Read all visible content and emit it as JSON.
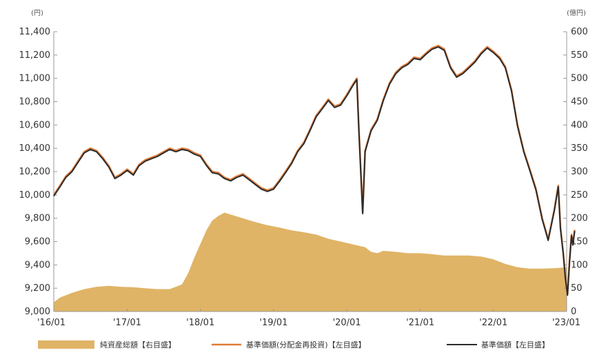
{
  "chart_data": {
    "type": "line",
    "left_unit": "(円)",
    "right_unit": "(億円)",
    "x_ticks": [
      "'16/01",
      "'17/01",
      "'18/01",
      "'19/01",
      "'20/01",
      "'21/01",
      "'22/01",
      "'23/01"
    ],
    "y_left_ticks": [
      "11,400",
      "11,200",
      "11,000",
      "10,800",
      "10,600",
      "10,400",
      "10,200",
      "10,000",
      "9,800",
      "9,600",
      "9,400",
      "9,200",
      "9,000"
    ],
    "y_right_ticks": [
      "600",
      "550",
      "500",
      "450",
      "400",
      "350",
      "300",
      "250",
      "200",
      "150",
      "100",
      "50",
      "0"
    ],
    "ylim_left": [
      9000,
      11400
    ],
    "ylim_right": [
      0,
      600
    ],
    "x_range": [
      "2016-01",
      "2023-01"
    ],
    "grid": false,
    "legend": [
      "純資産総額【右目盛】",
      "基準価額(分配金再投資)【左目盛】",
      "基準価額【左目盛】"
    ],
    "colors": {
      "area": "#e0b466",
      "reinvested_line": "#e07b39",
      "nav_line": "#2b2b2b",
      "axis": "#999999"
    },
    "series": [
      {
        "name": "純資産総額【右目盛】",
        "axis": "right",
        "kind": "area",
        "points": [
          [
            "2016-01",
            20
          ],
          [
            "2016-02",
            30
          ],
          [
            "2016-04",
            40
          ],
          [
            "2016-06",
            48
          ],
          [
            "2016-08",
            53
          ],
          [
            "2016-10",
            55
          ],
          [
            "2016-12",
            53
          ],
          [
            "2017-02",
            52
          ],
          [
            "2017-04",
            50
          ],
          [
            "2017-06",
            48
          ],
          [
            "2017-08",
            48
          ],
          [
            "2017-10",
            58
          ],
          [
            "2017-11",
            82
          ],
          [
            "2017-12",
            115
          ],
          [
            "2018-01",
            145
          ],
          [
            "2018-02",
            175
          ],
          [
            "2018-03",
            195
          ],
          [
            "2018-04",
            205
          ],
          [
            "2018-05",
            212
          ],
          [
            "2018-06",
            208
          ],
          [
            "2018-08",
            200
          ],
          [
            "2018-10",
            192
          ],
          [
            "2018-12",
            185
          ],
          [
            "2019-02",
            180
          ],
          [
            "2019-04",
            174
          ],
          [
            "2019-06",
            170
          ],
          [
            "2019-08",
            165
          ],
          [
            "2019-10",
            156
          ],
          [
            "2019-12",
            150
          ],
          [
            "2020-02",
            144
          ],
          [
            "2020-04",
            138
          ],
          [
            "2020-05",
            128
          ],
          [
            "2020-06",
            125
          ],
          [
            "2020-07",
            130
          ],
          [
            "2020-09",
            128
          ],
          [
            "2020-11",
            125
          ],
          [
            "2021-01",
            125
          ],
          [
            "2021-03",
            123
          ],
          [
            "2021-05",
            120
          ],
          [
            "2021-07",
            120
          ],
          [
            "2021-09",
            120
          ],
          [
            "2021-11",
            118
          ],
          [
            "2022-01",
            112
          ],
          [
            "2022-03",
            102
          ],
          [
            "2022-05",
            95
          ],
          [
            "2022-07",
            92
          ],
          [
            "2022-09",
            92
          ],
          [
            "2022-11",
            93
          ],
          [
            "2023-01",
            95
          ]
        ]
      },
      {
        "name": "基準価額(分配金再投資)【左目盛】",
        "axis": "left",
        "kind": "line",
        "points": [
          [
            "2016-01",
            10000
          ],
          [
            "2016-02",
            10080
          ],
          [
            "2016-03",
            10160
          ],
          [
            "2016-04",
            10210
          ],
          [
            "2016-05",
            10290
          ],
          [
            "2016-06",
            10370
          ],
          [
            "2016-07",
            10400
          ],
          [
            "2016-08",
            10380
          ],
          [
            "2016-09",
            10320
          ],
          [
            "2016-10",
            10250
          ],
          [
            "2016-11",
            10150
          ],
          [
            "2016-12",
            10180
          ],
          [
            "2017-01",
            10220
          ],
          [
            "2017-02",
            10180
          ],
          [
            "2017-03",
            10260
          ],
          [
            "2017-04",
            10300
          ],
          [
            "2017-05",
            10320
          ],
          [
            "2017-06",
            10340
          ],
          [
            "2017-07",
            10370
          ],
          [
            "2017-08",
            10400
          ],
          [
            "2017-09",
            10380
          ],
          [
            "2017-10",
            10400
          ],
          [
            "2017-11",
            10390
          ],
          [
            "2017-12",
            10360
          ],
          [
            "2018-01",
            10340
          ],
          [
            "2018-02",
            10260
          ],
          [
            "2018-03",
            10200
          ],
          [
            "2018-04",
            10190
          ],
          [
            "2018-05",
            10150
          ],
          [
            "2018-06",
            10130
          ],
          [
            "2018-07",
            10160
          ],
          [
            "2018-08",
            10180
          ],
          [
            "2018-09",
            10140
          ],
          [
            "2018-10",
            10100
          ],
          [
            "2018-11",
            10060
          ],
          [
            "2018-12",
            10040
          ],
          [
            "2019-01",
            10060
          ],
          [
            "2019-02",
            10130
          ],
          [
            "2019-03",
            10200
          ],
          [
            "2019-04",
            10280
          ],
          [
            "2019-05",
            10380
          ],
          [
            "2019-06",
            10450
          ],
          [
            "2019-07",
            10560
          ],
          [
            "2019-08",
            10680
          ],
          [
            "2019-09",
            10750
          ],
          [
            "2019-10",
            10820
          ],
          [
            "2019-11",
            10760
          ],
          [
            "2019-12",
            10780
          ],
          [
            "2020-01",
            10860
          ],
          [
            "2020-02",
            10950
          ],
          [
            "2020-02-20",
            11000
          ],
          [
            "2020-03",
            10560
          ],
          [
            "2020-03-20",
            9850
          ],
          [
            "2020-04",
            10380
          ],
          [
            "2020-05",
            10560
          ],
          [
            "2020-06",
            10650
          ],
          [
            "2020-07",
            10820
          ],
          [
            "2020-08",
            10960
          ],
          [
            "2020-09",
            11050
          ],
          [
            "2020-10",
            11100
          ],
          [
            "2020-11",
            11130
          ],
          [
            "2020-12",
            11180
          ],
          [
            "2021-01",
            11170
          ],
          [
            "2021-02",
            11220
          ],
          [
            "2021-03",
            11260
          ],
          [
            "2021-04",
            11280
          ],
          [
            "2021-05",
            11250
          ],
          [
            "2021-06",
            11100
          ],
          [
            "2021-07",
            11020
          ],
          [
            "2021-08",
            11050
          ],
          [
            "2021-09",
            11100
          ],
          [
            "2021-10",
            11150
          ],
          [
            "2021-11",
            11220
          ],
          [
            "2021-12",
            11270
          ],
          [
            "2022-01",
            11230
          ],
          [
            "2022-02",
            11180
          ],
          [
            "2022-03",
            11100
          ],
          [
            "2022-04",
            10900
          ],
          [
            "2022-05",
            10600
          ],
          [
            "2022-06",
            10380
          ],
          [
            "2022-07",
            10220
          ],
          [
            "2022-08",
            10050
          ],
          [
            "2022-09",
            9800
          ],
          [
            "2022-10",
            9620
          ],
          [
            "2022-11",
            9880
          ],
          [
            "2022-11-20",
            10080
          ],
          [
            "2022-12",
            9720
          ],
          [
            "2022-12-15",
            9500
          ],
          [
            "2022-12-25",
            9300
          ],
          [
            "2023-01-05",
            9150
          ],
          [
            "2023-01-15",
            9430
          ],
          [
            "2023-01-25",
            9660
          ],
          [
            "2023-02-01",
            9580
          ],
          [
            "2023-02-10",
            9700
          ]
        ]
      },
      {
        "name": "基準価額【左目盛】",
        "axis": "left",
        "kind": "line",
        "points": [
          [
            "2016-01",
            9990
          ],
          [
            "2016-02",
            10070
          ],
          [
            "2016-03",
            10150
          ],
          [
            "2016-04",
            10200
          ],
          [
            "2016-05",
            10280
          ],
          [
            "2016-06",
            10360
          ],
          [
            "2016-07",
            10390
          ],
          [
            "2016-08",
            10370
          ],
          [
            "2016-09",
            10310
          ],
          [
            "2016-10",
            10240
          ],
          [
            "2016-11",
            10140
          ],
          [
            "2016-12",
            10170
          ],
          [
            "2017-01",
            10210
          ],
          [
            "2017-02",
            10170
          ],
          [
            "2017-03",
            10250
          ],
          [
            "2017-04",
            10290
          ],
          [
            "2017-05",
            10310
          ],
          [
            "2017-06",
            10330
          ],
          [
            "2017-07",
            10360
          ],
          [
            "2017-08",
            10390
          ],
          [
            "2017-09",
            10370
          ],
          [
            "2017-10",
            10390
          ],
          [
            "2017-11",
            10380
          ],
          [
            "2017-12",
            10350
          ],
          [
            "2018-01",
            10330
          ],
          [
            "2018-02",
            10250
          ],
          [
            "2018-03",
            10190
          ],
          [
            "2018-04",
            10180
          ],
          [
            "2018-05",
            10140
          ],
          [
            "2018-06",
            10120
          ],
          [
            "2018-07",
            10150
          ],
          [
            "2018-08",
            10170
          ],
          [
            "2018-09",
            10130
          ],
          [
            "2018-10",
            10090
          ],
          [
            "2018-11",
            10050
          ],
          [
            "2018-12",
            10030
          ],
          [
            "2019-01",
            10050
          ],
          [
            "2019-02",
            10120
          ],
          [
            "2019-03",
            10190
          ],
          [
            "2019-04",
            10270
          ],
          [
            "2019-05",
            10370
          ],
          [
            "2019-06",
            10440
          ],
          [
            "2019-07",
            10550
          ],
          [
            "2019-08",
            10670
          ],
          [
            "2019-09",
            10740
          ],
          [
            "2019-10",
            10810
          ],
          [
            "2019-11",
            10750
          ],
          [
            "2019-12",
            10770
          ],
          [
            "2020-01",
            10850
          ],
          [
            "2020-02",
            10940
          ],
          [
            "2020-02-20",
            10990
          ],
          [
            "2020-03",
            10550
          ],
          [
            "2020-03-20",
            9840
          ],
          [
            "2020-04",
            10370
          ],
          [
            "2020-05",
            10550
          ],
          [
            "2020-06",
            10640
          ],
          [
            "2020-07",
            10810
          ],
          [
            "2020-08",
            10950
          ],
          [
            "2020-09",
            11040
          ],
          [
            "2020-10",
            11090
          ],
          [
            "2020-11",
            11120
          ],
          [
            "2020-12",
            11170
          ],
          [
            "2021-01",
            11160
          ],
          [
            "2021-02",
            11210
          ],
          [
            "2021-03",
            11250
          ],
          [
            "2021-04",
            11270
          ],
          [
            "2021-05",
            11240
          ],
          [
            "2021-06",
            11090
          ],
          [
            "2021-07",
            11010
          ],
          [
            "2021-08",
            11040
          ],
          [
            "2021-09",
            11090
          ],
          [
            "2021-10",
            11140
          ],
          [
            "2021-11",
            11210
          ],
          [
            "2021-12",
            11260
          ],
          [
            "2022-01",
            11220
          ],
          [
            "2022-02",
            11170
          ],
          [
            "2022-03",
            11090
          ],
          [
            "2022-04",
            10890
          ],
          [
            "2022-05",
            10590
          ],
          [
            "2022-06",
            10370
          ],
          [
            "2022-07",
            10210
          ],
          [
            "2022-08",
            10040
          ],
          [
            "2022-09",
            9790
          ],
          [
            "2022-10",
            9610
          ],
          [
            "2022-11",
            9870
          ],
          [
            "2022-11-20",
            10070
          ],
          [
            "2022-12",
            9710
          ],
          [
            "2022-12-15",
            9490
          ],
          [
            "2022-12-25",
            9290
          ],
          [
            "2023-01-05",
            9140
          ],
          [
            "2023-01-15",
            9420
          ],
          [
            "2023-01-25",
            9650
          ],
          [
            "2023-02-01",
            9570
          ],
          [
            "2023-02-10",
            9690
          ]
        ]
      }
    ]
  }
}
